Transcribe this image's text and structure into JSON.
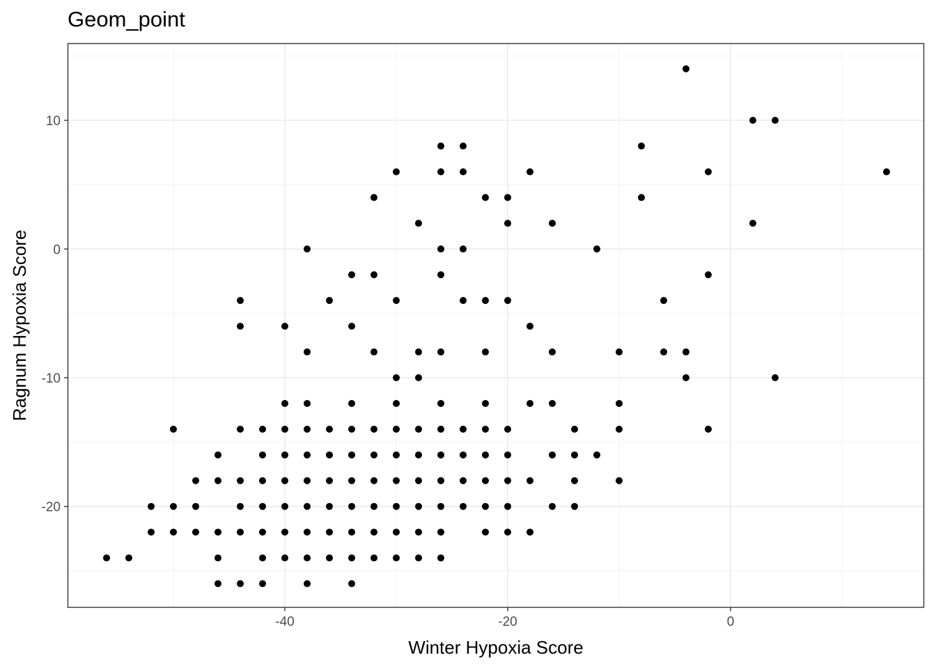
{
  "chart_data": {
    "type": "scatter",
    "title": "Geom_point",
    "xlabel": "Winter Hypoxia Score",
    "ylabel": "Ragnum Hypoxia Score",
    "xlim": [
      -59,
      17
    ],
    "ylim": [
      -28,
      16
    ],
    "x_ticks": [
      -40,
      -20,
      0
    ],
    "y_ticks": [
      -20,
      -10,
      0,
      10
    ],
    "grid": true,
    "point_color": "#000000",
    "points": [
      [
        -4,
        14
      ],
      [
        2,
        10
      ],
      [
        4,
        10
      ],
      [
        -26,
        8
      ],
      [
        -24,
        8
      ],
      [
        -8,
        8
      ],
      [
        -30,
        6
      ],
      [
        -26,
        6
      ],
      [
        -24,
        6
      ],
      [
        -18,
        6
      ],
      [
        -2,
        6
      ],
      [
        14,
        6
      ],
      [
        -32,
        4
      ],
      [
        -22,
        4
      ],
      [
        -20,
        4
      ],
      [
        -8,
        4
      ],
      [
        -28,
        2
      ],
      [
        -20,
        2
      ],
      [
        -16,
        2
      ],
      [
        2,
        2
      ],
      [
        -38,
        0
      ],
      [
        -26,
        0
      ],
      [
        -24,
        0
      ],
      [
        -12,
        0
      ],
      [
        -34,
        -2
      ],
      [
        -32,
        -2
      ],
      [
        -26,
        -2
      ],
      [
        -2,
        -2
      ],
      [
        -44,
        -4
      ],
      [
        -36,
        -4
      ],
      [
        -30,
        -4
      ],
      [
        -24,
        -4
      ],
      [
        -22,
        -4
      ],
      [
        -20,
        -4
      ],
      [
        -6,
        -4
      ],
      [
        -44,
        -6
      ],
      [
        -40,
        -6
      ],
      [
        -34,
        -6
      ],
      [
        -18,
        -6
      ],
      [
        -38,
        -8
      ],
      [
        -32,
        -8
      ],
      [
        -28,
        -8
      ],
      [
        -26,
        -8
      ],
      [
        -22,
        -8
      ],
      [
        -16,
        -8
      ],
      [
        -10,
        -8
      ],
      [
        -6,
        -8
      ],
      [
        -4,
        -8
      ],
      [
        -30,
        -10
      ],
      [
        -28,
        -10
      ],
      [
        -4,
        -10
      ],
      [
        4,
        -10
      ],
      [
        -40,
        -12
      ],
      [
        -38,
        -12
      ],
      [
        -34,
        -12
      ],
      [
        -30,
        -12
      ],
      [
        -26,
        -12
      ],
      [
        -22,
        -12
      ],
      [
        -18,
        -12
      ],
      [
        -16,
        -12
      ],
      [
        -10,
        -12
      ],
      [
        -50,
        -14
      ],
      [
        -44,
        -14
      ],
      [
        -42,
        -14
      ],
      [
        -40,
        -14
      ],
      [
        -38,
        -14
      ],
      [
        -36,
        -14
      ],
      [
        -34,
        -14
      ],
      [
        -32,
        -14
      ],
      [
        -30,
        -14
      ],
      [
        -28,
        -14
      ],
      [
        -26,
        -14
      ],
      [
        -24,
        -14
      ],
      [
        -22,
        -14
      ],
      [
        -20,
        -14
      ],
      [
        -14,
        -14
      ],
      [
        -10,
        -14
      ],
      [
        -2,
        -14
      ],
      [
        -46,
        -16
      ],
      [
        -42,
        -16
      ],
      [
        -40,
        -16
      ],
      [
        -38,
        -16
      ],
      [
        -36,
        -16
      ],
      [
        -34,
        -16
      ],
      [
        -32,
        -16
      ],
      [
        -30,
        -16
      ],
      [
        -28,
        -16
      ],
      [
        -26,
        -16
      ],
      [
        -24,
        -16
      ],
      [
        -22,
        -16
      ],
      [
        -20,
        -16
      ],
      [
        -16,
        -16
      ],
      [
        -14,
        -16
      ],
      [
        -12,
        -16
      ],
      [
        -48,
        -18
      ],
      [
        -46,
        -18
      ],
      [
        -44,
        -18
      ],
      [
        -42,
        -18
      ],
      [
        -40,
        -18
      ],
      [
        -38,
        -18
      ],
      [
        -36,
        -18
      ],
      [
        -34,
        -18
      ],
      [
        -32,
        -18
      ],
      [
        -30,
        -18
      ],
      [
        -28,
        -18
      ],
      [
        -26,
        -18
      ],
      [
        -24,
        -18
      ],
      [
        -22,
        -18
      ],
      [
        -20,
        -18
      ],
      [
        -18,
        -18
      ],
      [
        -14,
        -18
      ],
      [
        -10,
        -18
      ],
      [
        -52,
        -20
      ],
      [
        -50,
        -20
      ],
      [
        -48,
        -20
      ],
      [
        -44,
        -20
      ],
      [
        -42,
        -20
      ],
      [
        -40,
        -20
      ],
      [
        -38,
        -20
      ],
      [
        -36,
        -20
      ],
      [
        -34,
        -20
      ],
      [
        -32,
        -20
      ],
      [
        -30,
        -20
      ],
      [
        -28,
        -20
      ],
      [
        -26,
        -20
      ],
      [
        -24,
        -20
      ],
      [
        -22,
        -20
      ],
      [
        -20,
        -20
      ],
      [
        -16,
        -20
      ],
      [
        -14,
        -20
      ],
      [
        -52,
        -22
      ],
      [
        -50,
        -22
      ],
      [
        -48,
        -22
      ],
      [
        -46,
        -22
      ],
      [
        -44,
        -22
      ],
      [
        -42,
        -22
      ],
      [
        -40,
        -22
      ],
      [
        -38,
        -22
      ],
      [
        -36,
        -22
      ],
      [
        -34,
        -22
      ],
      [
        -32,
        -22
      ],
      [
        -30,
        -22
      ],
      [
        -28,
        -22
      ],
      [
        -26,
        -22
      ],
      [
        -22,
        -22
      ],
      [
        -20,
        -22
      ],
      [
        -18,
        -22
      ],
      [
        -56,
        -24
      ],
      [
        -54,
        -24
      ],
      [
        -46,
        -24
      ],
      [
        -42,
        -24
      ],
      [
        -40,
        -24
      ],
      [
        -38,
        -24
      ],
      [
        -36,
        -24
      ],
      [
        -34,
        -24
      ],
      [
        -32,
        -24
      ],
      [
        -30,
        -24
      ],
      [
        -28,
        -24
      ],
      [
        -26,
        -24
      ],
      [
        -46,
        -26
      ],
      [
        -44,
        -26
      ],
      [
        -42,
        -26
      ],
      [
        -38,
        -26
      ],
      [
        -34,
        -26
      ]
    ]
  }
}
